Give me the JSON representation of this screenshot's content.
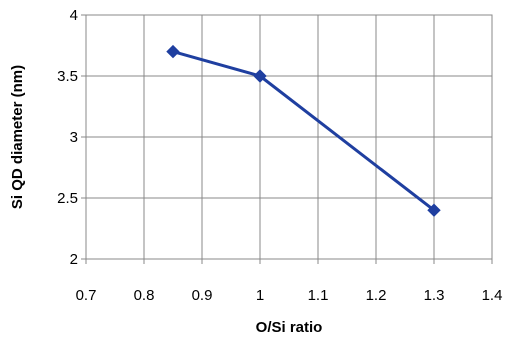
{
  "chart_data": {
    "type": "line",
    "xlabel": "O/Si ratio",
    "ylabel": "Si QD diameter (nm)",
    "xlim": [
      0.7,
      1.4
    ],
    "ylim": [
      2,
      4
    ],
    "xticks": [
      "0.7",
      "0.8",
      "0.9",
      "1",
      "1.1",
      "1.2",
      "1.3",
      "1.4"
    ],
    "yticks": [
      "2",
      "2.5",
      "3",
      "3.5",
      "4"
    ],
    "grid": true,
    "series": [
      {
        "x": [
          0.85,
          1.0,
          1.3
        ],
        "y": [
          3.7,
          3.5,
          2.4
        ],
        "color": "#1f3fa0",
        "marker": "diamond"
      }
    ]
  }
}
